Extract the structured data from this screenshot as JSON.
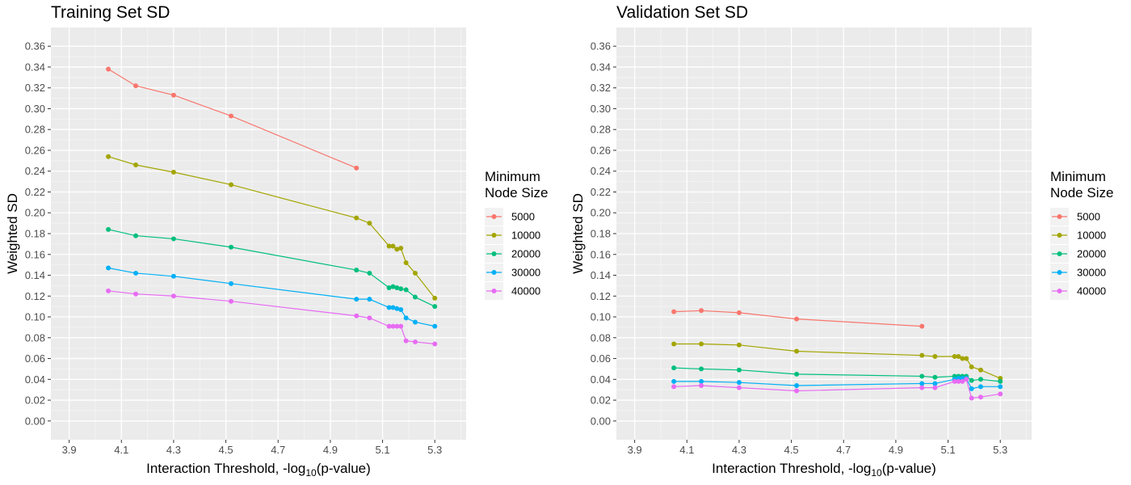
{
  "chart_data": [
    {
      "type": "line",
      "title": "Training Set SD",
      "xlabel_main": "Interaction Threshold, -log",
      "xlabel_sub": "10",
      "xlabel_tail": "(p-value)",
      "ylabel": "Weighted SD",
      "xlim": [
        3.83,
        5.42
      ],
      "ylim": [
        -0.018,
        0.378
      ],
      "xticks": [
        3.9,
        4.1,
        4.3,
        4.5,
        4.7,
        4.9,
        5.1,
        5.3
      ],
      "xtick_labels": [
        "3.9",
        "4.1",
        "4.3",
        "4.5",
        "4.7",
        "4.9",
        "5.1",
        "5.3"
      ],
      "yticks": [
        0,
        0.02,
        0.04,
        0.06,
        0.08,
        0.1,
        0.12,
        0.14,
        0.16,
        0.18,
        0.2,
        0.22,
        0.24,
        0.26,
        0.28,
        0.3,
        0.32,
        0.34,
        0.36
      ],
      "ytick_labels": [
        "0.00",
        "0.02",
        "0.04",
        "0.06",
        "0.08",
        "0.10",
        "0.12",
        "0.14",
        "0.16",
        "0.18",
        "0.20",
        "0.22",
        "0.24",
        "0.26",
        "0.28",
        "0.30",
        "0.32",
        "0.34",
        "0.36"
      ],
      "grid": true,
      "legend": {
        "title_line1": "Minimum",
        "title_line2": "Node Size",
        "position": "right"
      },
      "series": [
        {
          "name": "5000",
          "color": "#F8766D",
          "x": [
            4.05,
            4.155,
            4.3,
            4.52,
            5.0
          ],
          "y": [
            0.338,
            0.322,
            0.313,
            0.293,
            0.243
          ]
        },
        {
          "name": "10000",
          "color": "#A3A500",
          "x": [
            4.05,
            4.155,
            4.3,
            4.52,
            5.0,
            5.05,
            5.125,
            5.14,
            5.155,
            5.17,
            5.19,
            5.225,
            5.3
          ],
          "y": [
            0.254,
            0.246,
            0.239,
            0.227,
            0.195,
            0.19,
            0.168,
            0.168,
            0.165,
            0.166,
            0.152,
            0.142,
            0.118
          ]
        },
        {
          "name": "20000",
          "color": "#00BF7D",
          "x": [
            4.05,
            4.155,
            4.3,
            4.52,
            5.0,
            5.05,
            5.125,
            5.14,
            5.155,
            5.17,
            5.19,
            5.225,
            5.3
          ],
          "y": [
            0.184,
            0.178,
            0.175,
            0.167,
            0.145,
            0.142,
            0.128,
            0.129,
            0.128,
            0.127,
            0.126,
            0.119,
            0.11
          ]
        },
        {
          "name": "30000",
          "color": "#00B0F6",
          "x": [
            4.05,
            4.155,
            4.3,
            4.52,
            5.0,
            5.05,
            5.125,
            5.14,
            5.155,
            5.17,
            5.19,
            5.225,
            5.3
          ],
          "y": [
            0.147,
            0.142,
            0.139,
            0.132,
            0.117,
            0.117,
            0.109,
            0.109,
            0.108,
            0.107,
            0.099,
            0.095,
            0.091
          ]
        },
        {
          "name": "40000",
          "color": "#E76BF3",
          "x": [
            4.05,
            4.155,
            4.3,
            4.52,
            5.0,
            5.05,
            5.125,
            5.14,
            5.155,
            5.17,
            5.19,
            5.225,
            5.3
          ],
          "y": [
            0.125,
            0.122,
            0.12,
            0.115,
            0.101,
            0.099,
            0.091,
            0.091,
            0.091,
            0.091,
            0.077,
            0.076,
            0.074
          ]
        }
      ]
    },
    {
      "type": "line",
      "title": "Validation Set SD",
      "xlabel_main": "Interaction Threshold, -log",
      "xlabel_sub": "10",
      "xlabel_tail": "(p-value)",
      "ylabel": "Weighted SD",
      "xlim": [
        3.83,
        5.42
      ],
      "ylim": [
        -0.018,
        0.378
      ],
      "xticks": [
        3.9,
        4.1,
        4.3,
        4.5,
        4.7,
        4.9,
        5.1,
        5.3
      ],
      "xtick_labels": [
        "3.9",
        "4.1",
        "4.3",
        "4.5",
        "4.7",
        "4.9",
        "5.1",
        "5.3"
      ],
      "yticks": [
        0,
        0.02,
        0.04,
        0.06,
        0.08,
        0.1,
        0.12,
        0.14,
        0.16,
        0.18,
        0.2,
        0.22,
        0.24,
        0.26,
        0.28,
        0.3,
        0.32,
        0.34,
        0.36
      ],
      "ytick_labels": [
        "0.00",
        "0.02",
        "0.04",
        "0.06",
        "0.08",
        "0.10",
        "0.12",
        "0.14",
        "0.16",
        "0.18",
        "0.20",
        "0.22",
        "0.24",
        "0.26",
        "0.28",
        "0.30",
        "0.32",
        "0.34",
        "0.36"
      ],
      "grid": true,
      "legend": {
        "title_line1": "Minimum",
        "title_line2": "Node Size",
        "position": "right"
      },
      "series": [
        {
          "name": "5000",
          "color": "#F8766D",
          "x": [
            4.05,
            4.155,
            4.3,
            4.52,
            5.0
          ],
          "y": [
            0.105,
            0.106,
            0.104,
            0.098,
            0.091
          ]
        },
        {
          "name": "10000",
          "color": "#A3A500",
          "x": [
            4.05,
            4.155,
            4.3,
            4.52,
            5.0,
            5.05,
            5.125,
            5.14,
            5.155,
            5.17,
            5.19,
            5.225,
            5.3
          ],
          "y": [
            0.074,
            0.074,
            0.073,
            0.067,
            0.063,
            0.062,
            0.062,
            0.062,
            0.06,
            0.06,
            0.052,
            0.049,
            0.041
          ]
        },
        {
          "name": "20000",
          "color": "#00BF7D",
          "x": [
            4.05,
            4.155,
            4.3,
            4.52,
            5.0,
            5.05,
            5.125,
            5.14,
            5.155,
            5.17,
            5.19,
            5.225,
            5.3
          ],
          "y": [
            0.051,
            0.05,
            0.049,
            0.045,
            0.043,
            0.042,
            0.043,
            0.043,
            0.043,
            0.043,
            0.039,
            0.04,
            0.038
          ]
        },
        {
          "name": "30000",
          "color": "#00B0F6",
          "x": [
            4.05,
            4.155,
            4.3,
            4.52,
            5.0,
            5.05,
            5.125,
            5.14,
            5.155,
            5.17,
            5.19,
            5.225,
            5.3
          ],
          "y": [
            0.038,
            0.038,
            0.037,
            0.034,
            0.036,
            0.036,
            0.04,
            0.041,
            0.041,
            0.041,
            0.031,
            0.033,
            0.033
          ]
        },
        {
          "name": "40000",
          "color": "#E76BF3",
          "x": [
            4.05,
            4.155,
            4.3,
            4.52,
            5.0,
            5.05,
            5.125,
            5.14,
            5.155,
            5.17,
            5.19,
            5.225,
            5.3
          ],
          "y": [
            0.033,
            0.034,
            0.032,
            0.029,
            0.032,
            0.032,
            0.038,
            0.038,
            0.038,
            0.04,
            0.022,
            0.023,
            0.026
          ]
        }
      ]
    }
  ]
}
